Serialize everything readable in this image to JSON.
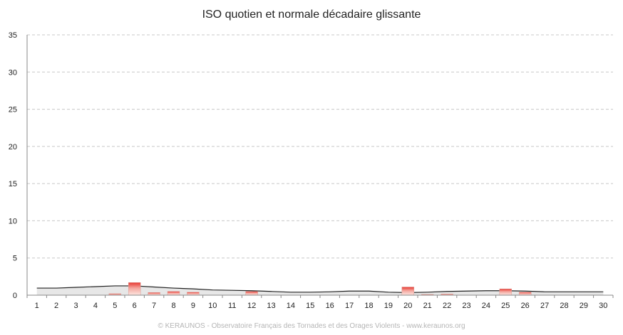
{
  "chart_data": {
    "type": "bar",
    "title": "ISO quotien et normale décadaire glissante",
    "categories": [
      "1",
      "2",
      "3",
      "4",
      "5",
      "6",
      "7",
      "8",
      "9",
      "10",
      "11",
      "12",
      "13",
      "14",
      "15",
      "16",
      "17",
      "18",
      "19",
      "20",
      "21",
      "22",
      "23",
      "24",
      "25",
      "26",
      "27",
      "28",
      "29",
      "30"
    ],
    "ylim": [
      0,
      35
    ],
    "yticks": [
      0,
      5,
      10,
      15,
      20,
      25,
      30,
      35
    ],
    "grid": true,
    "series": [
      {
        "type": "bar",
        "color": "#e8362f",
        "values": [
          0,
          0,
          0,
          0,
          0.2,
          1.7,
          0.35,
          0.5,
          0.4,
          0,
          0,
          0.5,
          0,
          0,
          0,
          0,
          0,
          0,
          0,
          1.1,
          0.1,
          0.15,
          0,
          0,
          0.85,
          0.4,
          0,
          0,
          0,
          0
        ]
      },
      {
        "type": "area",
        "color": "#222222",
        "values": [
          0.95,
          0.95,
          1.05,
          1.15,
          1.25,
          1.25,
          1.1,
          0.95,
          0.85,
          0.7,
          0.65,
          0.6,
          0.5,
          0.4,
          0.4,
          0.45,
          0.55,
          0.55,
          0.4,
          0.35,
          0.4,
          0.5,
          0.55,
          0.6,
          0.6,
          0.55,
          0.45,
          0.45,
          0.45,
          0.45
        ]
      }
    ]
  },
  "footer": "© KERAUNOS - Observatoire Français des Tornades et des Orages Violents - www.keraunos.org"
}
